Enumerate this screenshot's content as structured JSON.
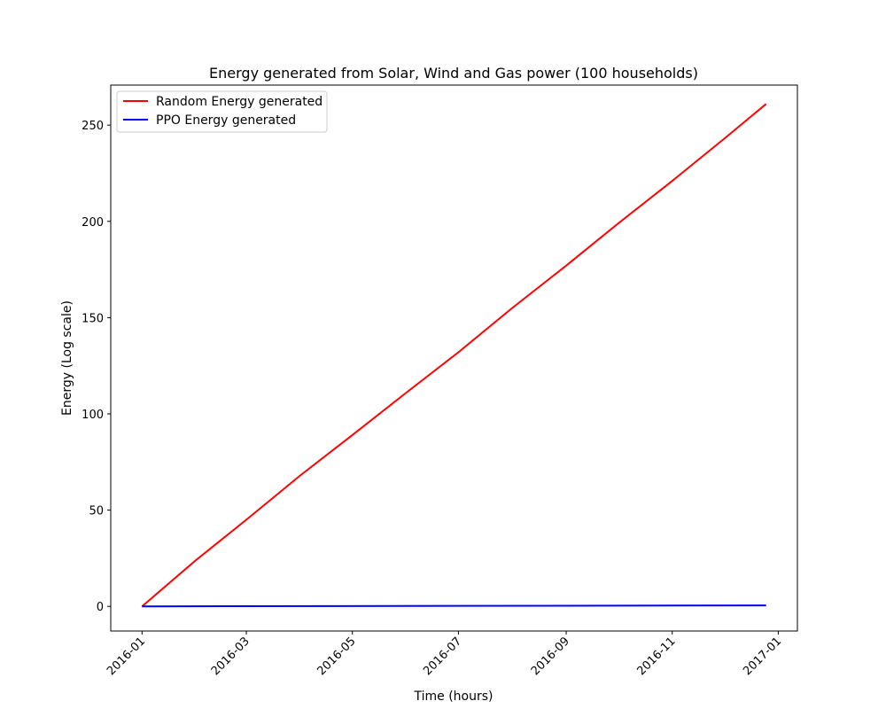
{
  "chart_data": {
    "type": "line",
    "title": "Energy generated from Solar, Wind and Gas power (100 households)",
    "xlabel": "Time (hours)",
    "ylabel": "Energy (Log scale)",
    "x_start": "2016-01-01",
    "x_end": "2016-12-25",
    "xlim": [
      "2015-12-14",
      "2017-01-12"
    ],
    "ylim": [
      -12.8,
      270.8
    ],
    "x_ticks": [
      "2016-01",
      "2016-03",
      "2016-05",
      "2016-07",
      "2016-09",
      "2016-11",
      "2017-01"
    ],
    "y_ticks": [
      0,
      50,
      100,
      150,
      200,
      250
    ],
    "legend": "upper-left",
    "grid": false,
    "series": [
      {
        "name": "Random Energy generated",
        "color": "#ff0000",
        "x": [
          "2016-01-01",
          "2016-02-01",
          "2016-03-01",
          "2016-04-01",
          "2016-05-01",
          "2016-06-01",
          "2016-07-01",
          "2016-08-01",
          "2016-09-01",
          "2016-10-01",
          "2016-11-01",
          "2016-12-01",
          "2016-12-25"
        ],
        "values": [
          0,
          24,
          45,
          68,
          89,
          111,
          132,
          155,
          177,
          199,
          221,
          243,
          261
        ]
      },
      {
        "name": "PPO Energy generated",
        "color": "#0000ff",
        "x": [
          "2016-01-01",
          "2016-12-25"
        ],
        "values": [
          0,
          0.5
        ]
      }
    ]
  }
}
